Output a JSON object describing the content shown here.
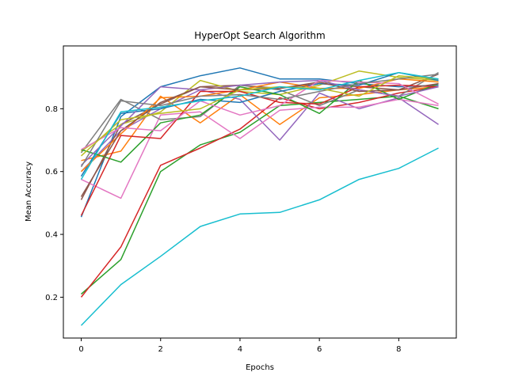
{
  "chart_data": {
    "type": "line",
    "title": "HyperOpt Search Algorithm",
    "xlabel": "Epochs",
    "ylabel": "Mean Accuracy",
    "xlim": [
      -0.45,
      9.45
    ],
    "ylim": [
      0.07,
      1.0
    ],
    "xticks": [
      0,
      2,
      4,
      6,
      8
    ],
    "xtick_labels": [
      "0",
      "2",
      "4",
      "6",
      "8"
    ],
    "yticks": [
      0.2,
      0.4,
      0.6,
      0.8
    ],
    "ytick_labels": [
      "0.2",
      "0.4",
      "0.6",
      "0.8"
    ],
    "grid": false,
    "legend": "none",
    "x": [
      0,
      1,
      2,
      3,
      4,
      5,
      6,
      7,
      8,
      9
    ],
    "series": [
      {
        "color": "#1f77b4",
        "values": [
          0.455,
          0.775,
          0.87,
          0.905,
          0.93,
          0.895,
          0.895,
          0.88,
          0.87,
          0.875
        ]
      },
      {
        "color": "#ff7f0e",
        "values": [
          0.635,
          0.665,
          0.84,
          0.755,
          0.845,
          0.75,
          0.835,
          0.845,
          0.86,
          0.87
        ]
      },
      {
        "color": "#2ca02c",
        "values": [
          0.21,
          0.32,
          0.6,
          0.685,
          0.725,
          0.81,
          0.82,
          0.83,
          0.84,
          0.8
        ]
      },
      {
        "color": "#d62728",
        "values": [
          0.2,
          0.36,
          0.62,
          0.675,
          0.735,
          0.835,
          0.8,
          0.82,
          0.85,
          0.87
        ]
      },
      {
        "color": "#9467bd",
        "values": [
          0.6,
          0.73,
          0.8,
          0.86,
          0.83,
          0.7,
          0.85,
          0.8,
          0.835,
          0.75
        ]
      },
      {
        "color": "#8c564b",
        "values": [
          0.51,
          0.75,
          0.815,
          0.87,
          0.875,
          0.865,
          0.88,
          0.87,
          0.86,
          0.91
        ]
      },
      {
        "color": "#e377c2",
        "values": [
          0.575,
          0.515,
          0.78,
          0.79,
          0.705,
          0.795,
          0.805,
          0.805,
          0.83,
          0.81
        ]
      },
      {
        "color": "#7f7f7f",
        "values": [
          0.66,
          0.83,
          0.765,
          0.775,
          0.875,
          0.86,
          0.81,
          0.86,
          0.84,
          0.915
        ]
      },
      {
        "color": "#bcbd22",
        "values": [
          0.665,
          0.75,
          0.79,
          0.89,
          0.855,
          0.845,
          0.875,
          0.92,
          0.9,
          0.89
        ]
      },
      {
        "color": "#17becf",
        "values": [
          0.11,
          0.24,
          0.33,
          0.425,
          0.465,
          0.47,
          0.51,
          0.575,
          0.61,
          0.675
        ]
      },
      {
        "color": "#1f77b4",
        "values": [
          0.585,
          0.785,
          0.8,
          0.83,
          0.82,
          0.855,
          0.88,
          0.875,
          0.915,
          0.89
        ]
      },
      {
        "color": "#ff7f0e",
        "values": [
          0.6,
          0.72,
          0.835,
          0.84,
          0.86,
          0.885,
          0.865,
          0.865,
          0.895,
          0.885
        ]
      },
      {
        "color": "#2ca02c",
        "values": [
          0.67,
          0.63,
          0.755,
          0.78,
          0.87,
          0.845,
          0.785,
          0.89,
          0.83,
          0.88
        ]
      },
      {
        "color": "#d62728",
        "values": [
          0.46,
          0.715,
          0.705,
          0.855,
          0.855,
          0.82,
          0.815,
          0.87,
          0.875,
          0.87
        ]
      },
      {
        "color": "#9467bd",
        "values": [
          0.62,
          0.745,
          0.87,
          0.86,
          0.875,
          0.885,
          0.89,
          0.86,
          0.84,
          0.87
        ]
      },
      {
        "color": "#8c564b",
        "values": [
          0.52,
          0.73,
          0.82,
          0.87,
          0.86,
          0.865,
          0.885,
          0.855,
          0.86,
          0.88
        ]
      },
      {
        "color": "#e377c2",
        "values": [
          0.67,
          0.74,
          0.73,
          0.825,
          0.78,
          0.81,
          0.89,
          0.885,
          0.88,
          0.815
        ]
      },
      {
        "color": "#7f7f7f",
        "values": [
          0.615,
          0.825,
          0.81,
          0.84,
          0.845,
          0.83,
          0.855,
          0.88,
          0.895,
          0.91
        ]
      },
      {
        "color": "#bcbd22",
        "values": [
          0.65,
          0.765,
          0.785,
          0.8,
          0.86,
          0.87,
          0.865,
          0.84,
          0.905,
          0.895
        ]
      },
      {
        "color": "#17becf",
        "values": [
          0.575,
          0.79,
          0.805,
          0.825,
          0.84,
          0.87,
          0.86,
          0.89,
          0.915,
          0.895
        ]
      }
    ]
  }
}
